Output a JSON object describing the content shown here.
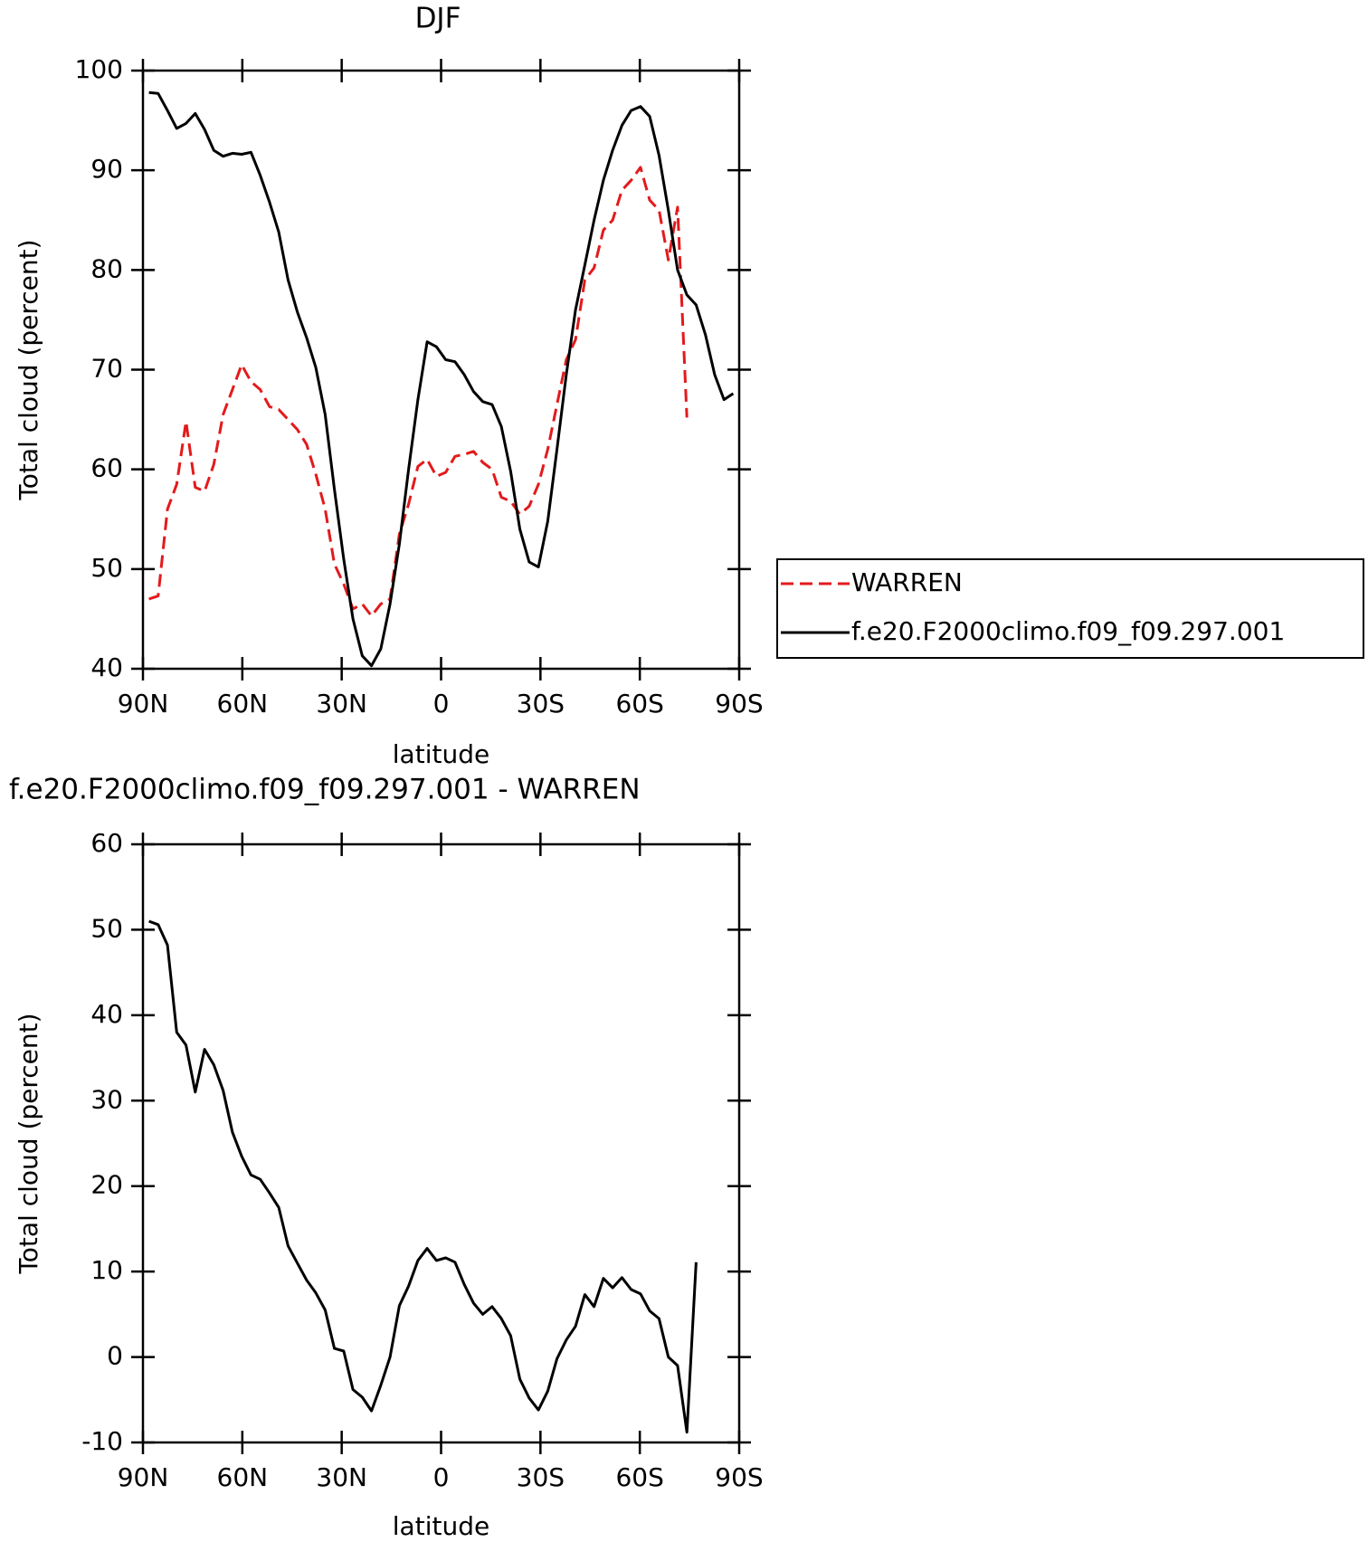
{
  "chart_data": [
    {
      "type": "line",
      "title": "DJF",
      "xlabel": "latitude",
      "ylabel": "Total cloud (percent)",
      "x": [
        88.2,
        85.4,
        82.6,
        79.8,
        77.0,
        74.2,
        71.4,
        68.6,
        65.8,
        63.0,
        60.2,
        57.4,
        54.6,
        51.8,
        49.0,
        46.2,
        43.4,
        40.6,
        37.8,
        35.0,
        32.2,
        29.4,
        26.6,
        23.8,
        21.0,
        18.2,
        15.4,
        12.6,
        9.8,
        7.0,
        4.2,
        1.4,
        -1.4,
        -4.2,
        -7.0,
        -9.8,
        -12.6,
        -15.4,
        -18.2,
        -21.0,
        -23.8,
        -26.6,
        -29.4,
        -32.2,
        -35.0,
        -37.8,
        -40.6,
        -43.4,
        -46.2,
        -49.0,
        -51.8,
        -54.6,
        -57.4,
        -60.2,
        -63.0,
        -65.8,
        -68.6,
        -71.4,
        -74.2,
        -77.0,
        -79.8,
        -82.6,
        -85.4,
        -88.2
      ],
      "series": [
        {
          "name": "WARREN",
          "color": "#e31a1c",
          "dashed": true,
          "values": [
            47.0,
            47.3,
            56,
            58.5,
            64.8,
            58.2,
            57.8,
            60.5,
            65.5,
            68,
            70.5,
            68.8,
            68,
            66.3,
            66,
            65,
            64,
            62.5,
            59.5,
            56,
            50.5,
            48.5,
            46,
            46.5,
            45.3,
            46.5,
            47,
            53.5,
            56.5,
            60.3,
            61,
            59.3,
            59.7,
            61.3,
            61.5,
            61.8,
            60.7,
            60,
            57.2,
            56.8,
            55.5,
            56.3,
            58.5,
            62,
            66.5,
            71,
            73,
            79,
            80.2,
            84,
            85,
            88,
            89,
            90.3,
            87,
            86,
            81,
            86.3,
            65.2,
            null,
            null,
            null,
            null,
            null
          ]
        },
        {
          "name": "f.e20.F2000climo.f09_f09.297.001",
          "color": "#000000",
          "dashed": false,
          "values": [
            97.8,
            97.7,
            96,
            94.2,
            94.7,
            95.7,
            94.1,
            92,
            91.4,
            91.7,
            91.6,
            91.8,
            89.5,
            86.8,
            83.8,
            79,
            75.8,
            73.2,
            70.2,
            65.5,
            58,
            51,
            45,
            41.3,
            40.3,
            42,
            46.5,
            52.5,
            60,
            67,
            72.8,
            72.3,
            71,
            70.8,
            69.5,
            67.8,
            66.8,
            66.5,
            64.3,
            59.8,
            54,
            50.7,
            50.2,
            54.8,
            62,
            69.5,
            76,
            80.5,
            85,
            89,
            92,
            94.5,
            96,
            96.4,
            95.4,
            91.5,
            86,
            80,
            77.5,
            76.5,
            73.5,
            69.5,
            67,
            67.6
          ]
        }
      ],
      "xlim": [
        90,
        -90
      ],
      "xticks": [
        {
          "value": 90,
          "label": "90N"
        },
        {
          "value": 60,
          "label": "60N"
        },
        {
          "value": 30,
          "label": "30N"
        },
        0,
        {
          "value": -30,
          "label": "30S"
        },
        {
          "value": -60,
          "label": "60S"
        },
        {
          "value": -90,
          "label": "90S"
        }
      ],
      "ylim": [
        40,
        100
      ],
      "yticks": [
        40,
        50,
        60,
        70,
        80,
        90,
        100
      ],
      "legend": "right"
    },
    {
      "type": "line",
      "title": "f.e20.F2000climo.f09_f09.297.001 - WARREN",
      "xlabel": "latitude",
      "ylabel": "Total cloud (percent)",
      "x": [
        88.2,
        85.4,
        82.6,
        79.8,
        77.0,
        74.2,
        71.4,
        68.6,
        65.8,
        63.0,
        60.2,
        57.4,
        54.6,
        51.8,
        49.0,
        46.2,
        43.4,
        40.6,
        37.8,
        35.0,
        32.2,
        29.4,
        26.6,
        23.8,
        21.0,
        18.2,
        15.4,
        12.6,
        9.8,
        7.0,
        4.2,
        1.4,
        -1.4,
        -4.2,
        -7.0,
        -9.8,
        -12.6,
        -15.4,
        -18.2,
        -21.0,
        -23.8,
        -26.6,
        -29.4,
        -32.2,
        -35.0,
        -37.8,
        -40.6,
        -43.4,
        -46.2,
        -49.0,
        -51.8,
        -54.6,
        -57.4,
        -60.2,
        -63.0,
        -65.8,
        -68.6,
        -71.4,
        -74.2,
        -77.0
      ],
      "series": [
        {
          "color": "#000000",
          "dashed": false,
          "values": [
            51,
            50.6,
            48.2,
            38,
            36.5,
            31,
            36,
            34.2,
            31.2,
            26.3,
            23.5,
            21.3,
            20.8,
            19.2,
            17.5,
            13,
            11,
            9,
            7.5,
            5.5,
            1,
            0.7,
            -3.8,
            -4.7,
            -6.3,
            -3.3,
            0,
            6,
            8.3,
            11.3,
            12.7,
            11.3,
            11.6,
            11.1,
            8.5,
            6.3,
            5,
            5.9,
            4.5,
            2.5,
            -2.6,
            -4.8,
            -6.2,
            -4,
            -0.2,
            2,
            3.6,
            7.3,
            5.9,
            9.2,
            8.1,
            9.3,
            7.9,
            7.4,
            5.4,
            4.5,
            0,
            -1,
            -8.8,
            11.1
          ]
        }
      ],
      "xlim": [
        90,
        -90
      ],
      "xticks": [
        {
          "value": 90,
          "label": "90N"
        },
        {
          "value": 60,
          "label": "60N"
        },
        {
          "value": 30,
          "label": "30N"
        },
        0,
        {
          "value": -30,
          "label": "30S"
        },
        {
          "value": -60,
          "label": "60S"
        },
        {
          "value": -90,
          "label": "90S"
        }
      ],
      "ylim": [
        -10,
        60
      ],
      "yticks": [
        -10,
        0,
        10,
        20,
        30,
        40,
        50,
        60
      ]
    }
  ]
}
